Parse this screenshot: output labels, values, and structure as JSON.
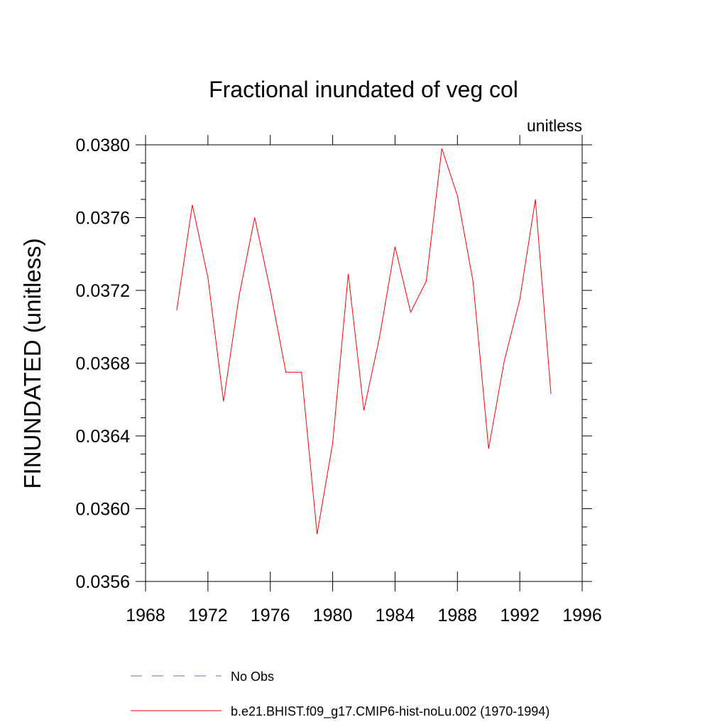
{
  "chart_data": {
    "type": "line",
    "title": "Fractional inundated of veg col",
    "subtitle_right": "unitless",
    "ylabel": "FINUNDATED  (unitless)",
    "xlabel": "",
    "xlim": [
      1968,
      1996
    ],
    "ylim": [
      0.0356,
      0.038
    ],
    "x_ticks": [
      1968,
      1972,
      1976,
      1980,
      1984,
      1988,
      1992,
      1996
    ],
    "x_tick_labels": [
      "1968",
      "1972",
      "1976",
      "1980",
      "1984",
      "1988",
      "1992",
      "1996"
    ],
    "y_ticks": [
      0.0356,
      0.036,
      0.0364,
      0.0368,
      0.0372,
      0.0376,
      0.038
    ],
    "y_tick_labels": [
      "0.0356",
      "0.0360",
      "0.0364",
      "0.0368",
      "0.0372",
      "0.0376",
      "0.0380"
    ],
    "grid": false,
    "legend_position": "bottom",
    "series": [
      {
        "name": "No Obs",
        "color": "#6a6acd",
        "dash": "dashed",
        "x": [],
        "values": []
      },
      {
        "name": "b.e21.BHIST.f09_g17.CMIP6-hist-noLu.002 (1970-1994)",
        "color": "#ff0000",
        "dash": "solid",
        "x": [
          1970,
          1971,
          1972,
          1973,
          1974,
          1975,
          1976,
          1977,
          1978,
          1979,
          1980,
          1981,
          1982,
          1983,
          1984,
          1985,
          1986,
          1987,
          1988,
          1989,
          1990,
          1991,
          1992,
          1993,
          1994
        ],
        "values": [
          0.03709,
          0.03767,
          0.03727,
          0.03659,
          0.03717,
          0.0376,
          0.0372,
          0.03675,
          0.03675,
          0.03586,
          0.03636,
          0.03729,
          0.03654,
          0.03694,
          0.03744,
          0.03708,
          0.03725,
          0.03798,
          0.03772,
          0.03725,
          0.03633,
          0.03681,
          0.03715,
          0.0377,
          0.03663
        ]
      }
    ]
  }
}
